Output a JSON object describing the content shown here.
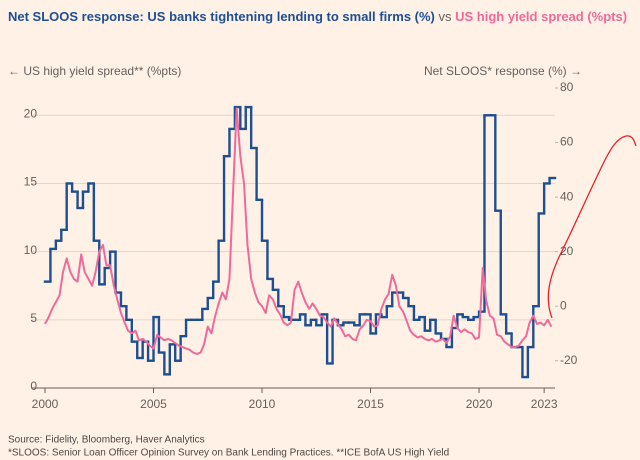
{
  "chart_data": {
    "type": "line",
    "title_segments": [
      "Net SLOOS response: US banks tightening lending to small firms (%)",
      "vs",
      "US high yield spread (%pts)"
    ],
    "y_label": "← US high yield spread** (%pts)",
    "y2_label": "Net SLOOS* response (%) →",
    "source": "Source: Fidelity, Bloomberg, Haver Analytics",
    "footnote": "*SLOOS: Senior Loan Officer Opinion Survey on Bank Lending Practices. **ICE BofA US High Yield",
    "xlim": [
      2000,
      2023.5
    ],
    "xticks": [
      2000,
      2005,
      2010,
      2015,
      2020,
      2023
    ],
    "ylim": [
      0,
      22
    ],
    "yticks": [
      0,
      5,
      10,
      15,
      20
    ],
    "y2lim": [
      -30,
      80
    ],
    "y2ticks": [
      -20,
      0,
      20,
      40,
      60,
      80
    ],
    "grid": true,
    "series": [
      {
        "color": "#1e4f91",
        "axis": "y2",
        "step": true,
        "x": [
          2000,
          2000.25,
          2000.5,
          2000.75,
          2001,
          2001.25,
          2001.5,
          2001.75,
          2002,
          2002.25,
          2002.5,
          2002.75,
          2003,
          2003.25,
          2003.5,
          2003.75,
          2004,
          2004.25,
          2004.5,
          2004.75,
          2005,
          2005.25,
          2005.5,
          2005.75,
          2006,
          2006.25,
          2006.5,
          2006.75,
          2007,
          2007.25,
          2007.5,
          2007.75,
          2008,
          2008.25,
          2008.5,
          2008.75,
          2009,
          2009.25,
          2009.5,
          2009.75,
          2010,
          2010.25,
          2010.5,
          2010.75,
          2011,
          2011.25,
          2011.5,
          2011.75,
          2012,
          2012.25,
          2012.5,
          2012.75,
          2013,
          2013.25,
          2013.5,
          2013.75,
          2014,
          2014.25,
          2014.5,
          2014.75,
          2015,
          2015.25,
          2015.5,
          2015.75,
          2016,
          2016.25,
          2016.5,
          2016.75,
          2017,
          2017.25,
          2017.5,
          2017.75,
          2018,
          2018.25,
          2018.5,
          2018.75,
          2019,
          2019.25,
          2019.5,
          2019.75,
          2020,
          2020.25,
          2020.5,
          2020.75,
          2021,
          2021.25,
          2021.5,
          2021.75,
          2022,
          2022.25,
          2022.5,
          2022.75,
          2023,
          2023.25
        ],
        "values": [
          9,
          21,
          24,
          28,
          45,
          42,
          36,
          42,
          45,
          24,
          8,
          14,
          20,
          5,
          0,
          -5,
          -13,
          -19,
          -13,
          -20,
          -4,
          -17,
          -25,
          -14,
          -20,
          -11,
          -5,
          -5,
          -5,
          -1,
          3,
          9,
          24,
          55,
          65,
          73,
          65,
          73,
          58,
          39,
          24,
          10,
          6,
          0,
          -4,
          -5,
          -5,
          -3,
          -7,
          -5,
          -7,
          -3,
          -21,
          -5,
          -7,
          -6,
          -6,
          -7,
          -3,
          -3,
          -10,
          -3,
          -4,
          0,
          5,
          5,
          3,
          0,
          -5,
          -4,
          -9,
          -5,
          -10,
          -12,
          -15,
          -8,
          -3,
          -4,
          -5,
          -4,
          -2,
          70,
          70,
          35,
          -3,
          -10,
          -15,
          -15,
          -26,
          -15,
          0,
          34,
          45,
          47
        ]
      },
      {
        "color": "#ee6a9b",
        "axis": "y",
        "x": [
          2000,
          2000.17,
          2000.33,
          2000.5,
          2000.67,
          2000.83,
          2001,
          2001.17,
          2001.33,
          2001.5,
          2001.67,
          2001.83,
          2002,
          2002.17,
          2002.33,
          2002.5,
          2002.67,
          2002.83,
          2003,
          2003.17,
          2003.33,
          2003.5,
          2003.67,
          2003.83,
          2004,
          2004.17,
          2004.33,
          2004.5,
          2004.67,
          2004.83,
          2005,
          2005.17,
          2005.33,
          2005.5,
          2005.67,
          2005.83,
          2006,
          2006.17,
          2006.33,
          2006.5,
          2006.67,
          2006.83,
          2007,
          2007.17,
          2007.33,
          2007.5,
          2007.67,
          2007.83,
          2008,
          2008.17,
          2008.33,
          2008.5,
          2008.67,
          2008.83,
          2009,
          2009.17,
          2009.33,
          2009.5,
          2009.67,
          2009.83,
          2010,
          2010.17,
          2010.33,
          2010.5,
          2010.67,
          2010.83,
          2011,
          2011.17,
          2011.33,
          2011.5,
          2011.67,
          2011.83,
          2012,
          2012.17,
          2012.33,
          2012.5,
          2012.67,
          2012.83,
          2013,
          2013.17,
          2013.33,
          2013.5,
          2013.67,
          2013.83,
          2014,
          2014.17,
          2014.33,
          2014.5,
          2014.67,
          2014.83,
          2015,
          2015.17,
          2015.33,
          2015.5,
          2015.67,
          2015.83,
          2016,
          2016.17,
          2016.33,
          2016.5,
          2016.67,
          2016.83,
          2017,
          2017.17,
          2017.33,
          2017.5,
          2017.67,
          2017.83,
          2018,
          2018.17,
          2018.33,
          2018.5,
          2018.67,
          2018.83,
          2019,
          2019.17,
          2019.33,
          2019.5,
          2019.67,
          2019.83,
          2020,
          2020.17,
          2020.33,
          2020.5,
          2020.67,
          2020.83,
          2021,
          2021.17,
          2021.33,
          2021.5,
          2021.67,
          2021.83,
          2022,
          2022.17,
          2022.33,
          2022.5,
          2022.67,
          2022.83,
          2023,
          2023.17,
          2023.33
        ],
        "values": [
          4.7,
          5.2,
          5.8,
          6.3,
          6.8,
          8.5,
          9.5,
          8.5,
          8.0,
          7.8,
          9.8,
          8.5,
          8.0,
          7.5,
          8.5,
          10.0,
          10.5,
          9.0,
          9.0,
          7.5,
          6.5,
          5.5,
          4.8,
          4.2,
          4.0,
          4.2,
          3.5,
          3.6,
          3.4,
          3.1,
          2.9,
          3.9,
          3.7,
          3.5,
          3.6,
          3.5,
          3.3,
          3.1,
          3.0,
          2.9,
          2.8,
          2.6,
          2.5,
          2.6,
          3.2,
          4.5,
          4.0,
          5.2,
          6.2,
          7.0,
          6.5,
          8.0,
          14.5,
          20.5,
          17.0,
          15.0,
          10.5,
          8.0,
          7.0,
          6.3,
          6.0,
          5.5,
          6.8,
          6.5,
          5.8,
          5.4,
          4.8,
          4.6,
          4.8,
          7.2,
          7.8,
          7.0,
          6.3,
          5.8,
          6.2,
          5.8,
          5.3,
          5.2,
          4.8,
          4.5,
          5.1,
          4.7,
          4.3,
          3.8,
          3.9,
          3.6,
          3.5,
          4.3,
          4.6,
          5.0,
          4.9,
          4.5,
          4.6,
          5.8,
          6.5,
          6.9,
          8.3,
          7.5,
          6.0,
          5.6,
          4.9,
          4.2,
          3.9,
          3.7,
          3.8,
          3.6,
          3.5,
          3.6,
          3.4,
          3.5,
          3.6,
          3.3,
          3.8,
          5.3,
          4.4,
          4.1,
          4.3,
          4.1,
          4.0,
          3.6,
          3.7,
          8.8,
          6.4,
          5.3,
          5.1,
          3.9,
          3.8,
          3.4,
          3.2,
          3.0,
          3.0,
          3.1,
          3.5,
          3.8,
          4.8,
          5.3,
          4.7,
          4.8,
          4.6,
          5.0,
          4.5
        ]
      }
    ]
  }
}
